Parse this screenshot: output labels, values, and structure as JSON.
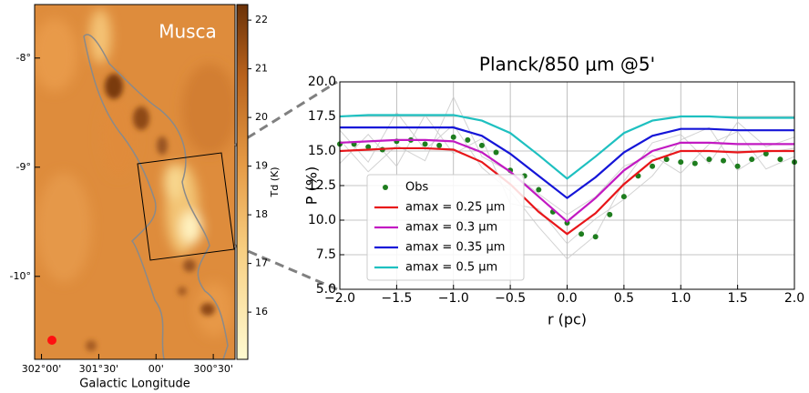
{
  "chart_data": [
    {
      "type": "map",
      "title": "Musca",
      "xlabel": "Galactic Longitude",
      "colorbar_label": "Td (K)",
      "xlim": [
        302.06,
        300.31
      ],
      "ylim": [
        -10.76,
        -7.51
      ],
      "xticks": [
        {
          "value": 302.0,
          "label": "302°00'"
        },
        {
          "value": 301.5,
          "label": "301°30'"
        },
        {
          "value": 301.0,
          "label": "00'"
        },
        {
          "value": 300.5,
          "label": "300°30'"
        }
      ],
      "yticks": [
        {
          "value": -8,
          "label": "-8°"
        },
        {
          "value": -9,
          "label": "-9°"
        },
        {
          "value": -10,
          "label": "-10°"
        }
      ],
      "clim": [
        15.03,
        22.32
      ],
      "cticks": [
        16,
        17,
        18,
        19,
        20,
        21,
        22
      ]
    },
    {
      "type": "line",
      "title": "Planck/850 μm @5'",
      "xlabel": "r (pc)",
      "ylabel": "P (%)",
      "xlim": [
        -2,
        2
      ],
      "ylim": [
        5,
        20
      ],
      "grid": true,
      "legend": "lower left",
      "xticks": [
        {
          "value": -2,
          "label": "−2.0"
        },
        {
          "value": -1.5,
          "label": "−1.5"
        },
        {
          "value": -1,
          "label": "−1.0"
        },
        {
          "value": -0.5,
          "label": "−0.5"
        },
        {
          "value": 0,
          "label": "0.0"
        },
        {
          "value": 0.5,
          "label": "0.5"
        },
        {
          "value": 1,
          "label": "1.0"
        },
        {
          "value": 1.5,
          "label": "1.5"
        },
        {
          "value": 2,
          "label": "2.0"
        }
      ],
      "yticks": [
        {
          "value": 5,
          "label": "5.0"
        },
        7.5,
        {
          "value": 10,
          "label": "10.0"
        },
        12.5,
        {
          "value": 15,
          "label": "15.0"
        },
        17.5,
        {
          "value": 20,
          "label": "20.0"
        }
      ],
      "x": [
        -2,
        -1.75,
        -1.5,
        -1.25,
        -1,
        -0.75,
        -0.5,
        -0.25,
        0,
        0.25,
        0.5,
        0.75,
        1,
        1.25,
        1.5,
        1.75,
        2
      ],
      "background_color": "#c8c8c8",
      "background_lines": [
        [
          16.5,
          14.2,
          17.8,
          15.1,
          16.9,
          13.8,
          12.1,
          9.5,
          7.2,
          8.9,
          12.8,
          15.6,
          16.2,
          14.1,
          17.1,
          15.3,
          16.0
        ],
        [
          14.1,
          16.2,
          13.9,
          17.6,
          14.8,
          15.9,
          11.2,
          10.8,
          8.3,
          10.1,
          11.5,
          13.2,
          15.8,
          16.7,
          13.6,
          14.9,
          15.2
        ],
        [
          15.8,
          13.5,
          15.4,
          14.3,
          18.9,
          14.6,
          13.5,
          11.9,
          10.4,
          11.7,
          13.9,
          14.7,
          13.4,
          15.5,
          16.4,
          13.7,
          14.6
        ]
      ],
      "series": [
        {
          "name": "Obs",
          "color": "#1e7d1e",
          "marker": "dot",
          "x": [
            -2,
            -1.875,
            -1.75,
            -1.625,
            -1.5,
            -1.375,
            -1.25,
            -1.125,
            -1,
            -0.875,
            -0.75,
            -0.625,
            -0.5,
            -0.375,
            -0.25,
            -0.125,
            0,
            0.125,
            0.25,
            0.375,
            0.5,
            0.625,
            0.75,
            0.875,
            1,
            1.125,
            1.25,
            1.375,
            1.5,
            1.625,
            1.75,
            1.875,
            2
          ],
          "values": [
            15.5,
            15.5,
            15.3,
            15.1,
            15.7,
            15.8,
            15.5,
            15.4,
            16.0,
            15.8,
            15.4,
            14.9,
            13.6,
            13.2,
            12.2,
            10.6,
            9.8,
            9.0,
            8.8,
            10.4,
            11.7,
            13.2,
            13.9,
            14.4,
            14.2,
            14.1,
            14.4,
            14.3,
            13.9,
            14.4,
            14.8,
            14.4,
            14.2
          ]
        },
        {
          "name": "amax = 0.25 μm",
          "color": "#e8161a",
          "values": [
            15.0,
            15.1,
            15.2,
            15.2,
            15.1,
            14.2,
            12.6,
            10.6,
            9.0,
            10.5,
            12.6,
            14.3,
            15.0,
            15.0,
            14.9,
            15.0,
            15.0
          ]
        },
        {
          "name": "amax = 0.3 μm",
          "color": "#c21ac2",
          "values": [
            15.6,
            15.7,
            15.8,
            15.8,
            15.7,
            14.9,
            13.5,
            11.7,
            9.9,
            11.6,
            13.6,
            15.0,
            15.6,
            15.6,
            15.5,
            15.5,
            15.5
          ]
        },
        {
          "name": "amax = 0.35 μm",
          "color": "#1515d8",
          "values": [
            16.7,
            16.7,
            16.7,
            16.7,
            16.7,
            16.1,
            14.8,
            13.2,
            11.6,
            13.1,
            14.9,
            16.1,
            16.6,
            16.6,
            16.5,
            16.5,
            16.5
          ]
        },
        {
          "name": "amax = 0.5 μm",
          "color": "#1ec0c0",
          "values": [
            17.5,
            17.6,
            17.6,
            17.6,
            17.6,
            17.2,
            16.3,
            14.7,
            13.0,
            14.6,
            16.3,
            17.2,
            17.5,
            17.5,
            17.4,
            17.4,
            17.4
          ]
        }
      ]
    }
  ]
}
